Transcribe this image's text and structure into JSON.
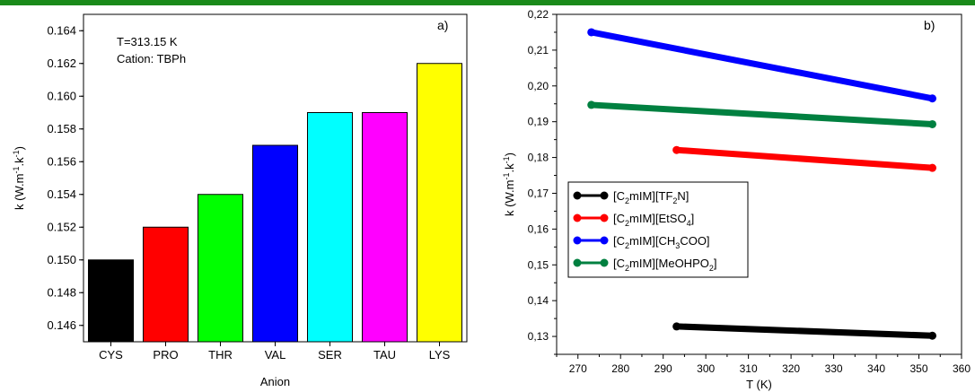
{
  "colors": {
    "top_bar": "#1a8a1a"
  },
  "chart_data": [
    {
      "id": "a",
      "type": "bar",
      "panel_label": "a)",
      "annotations": [
        "T=313.15 K",
        "Cation: TBPh"
      ],
      "xlabel": "Anion",
      "ylabel_parts": {
        "base": "k (W.m",
        "sup1": "-1",
        "mid": ".k",
        "sup2": "-1",
        "end": ")"
      },
      "categories": [
        "CYS",
        "PRO",
        "THR",
        "VAL",
        "SER",
        "TAU",
        "LYS"
      ],
      "values": [
        0.15,
        0.152,
        0.154,
        0.157,
        0.159,
        0.159,
        0.162
      ],
      "colors": [
        "#000000",
        "#ff0000",
        "#00ff00",
        "#0000ff",
        "#00ffff",
        "#ff00ff",
        "#ffff00"
      ],
      "ylim": [
        0.145,
        0.165
      ],
      "yticks": [
        "0.146",
        "0.148",
        "0.150",
        "0.152",
        "0.154",
        "0.156",
        "0.158",
        "0.160",
        "0.162",
        "0.164"
      ],
      "grid": false
    },
    {
      "id": "b",
      "type": "line",
      "panel_label": "b)",
      "xlabel": "T (K)",
      "ylabel_parts": {
        "base": "k (W.m",
        "sup1": "-1",
        "mid": ".k",
        "sup2": "-1",
        "end": ")"
      },
      "xlim": [
        265,
        360
      ],
      "ylim": [
        0.125,
        0.22
      ],
      "xticks": [
        "270",
        "280",
        "290",
        "300",
        "310",
        "320",
        "330",
        "340",
        "350",
        "360"
      ],
      "yticks": [
        "0,13",
        "0,14",
        "0,15",
        "0,16",
        "0,17",
        "0,18",
        "0,19",
        "0,20",
        "0,21",
        "0,22"
      ],
      "legend_position": "middle-left",
      "grid": false,
      "series": [
        {
          "legend": {
            "pre": "[C",
            "sub": "2",
            "post": "mIM][TF",
            "sub2": "2",
            "post2": "N]"
          },
          "color": "#000000",
          "x": [
            293.15,
            353.15
          ],
          "y": [
            0.1328,
            0.1302
          ]
        },
        {
          "legend": {
            "pre": "[C",
            "sub": "2",
            "post": "mIM][EtSO",
            "sub2": "4",
            "post2": "]"
          },
          "color": "#ff0000",
          "x": [
            293.15,
            353.15
          ],
          "y": [
            0.1821,
            0.1771
          ]
        },
        {
          "legend": {
            "pre": "[C",
            "sub": "2",
            "post": "mIM][CH",
            "sub2": "3",
            "post2": "COO]"
          },
          "color": "#0000ff",
          "x": [
            273.15,
            353.15
          ],
          "y": [
            0.215,
            0.1965
          ]
        },
        {
          "legend": {
            "pre": "[C",
            "sub": "2",
            "post": "mIM][MeOHPO",
            "sub2": "2",
            "post2": "]"
          },
          "color": "#008040",
          "x": [
            273.15,
            353.15
          ],
          "y": [
            0.1947,
            0.1893
          ]
        }
      ]
    }
  ]
}
